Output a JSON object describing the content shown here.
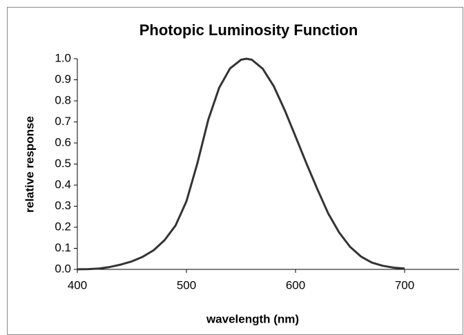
{
  "chart_data": {
    "type": "line",
    "title": "Photopic Luminosity Function",
    "xlabel": "wavelength (nm)",
    "ylabel": "relative response",
    "x": [
      400,
      410,
      420,
      430,
      440,
      450,
      460,
      470,
      480,
      490,
      500,
      510,
      520,
      530,
      540,
      550,
      555,
      560,
      570,
      580,
      590,
      600,
      610,
      620,
      630,
      640,
      650,
      660,
      670,
      680,
      690,
      700
    ],
    "series": [
      {
        "color": "#333333",
        "values": [
          0.0004,
          0.0012,
          0.004,
          0.0116,
          0.023,
          0.038,
          0.06,
          0.091,
          0.139,
          0.208,
          0.323,
          0.503,
          0.71,
          0.862,
          0.954,
          0.995,
          1.0,
          0.995,
          0.952,
          0.87,
          0.757,
          0.631,
          0.503,
          0.381,
          0.265,
          0.175,
          0.107,
          0.061,
          0.032,
          0.017,
          0.0082,
          0.0041
        ]
      }
    ],
    "xlim": [
      400,
      750
    ],
    "xticks": [
      400,
      500,
      600,
      700
    ],
    "ylim": [
      0,
      1
    ],
    "yticks": [
      {
        "value": 0,
        "label": "0.0"
      },
      0.1,
      0.2,
      0.3,
      0.4,
      0.5,
      0.6,
      0.7,
      0.8,
      0.9,
      {
        "value": 1,
        "label": "1.0"
      }
    ],
    "grid": false
  }
}
